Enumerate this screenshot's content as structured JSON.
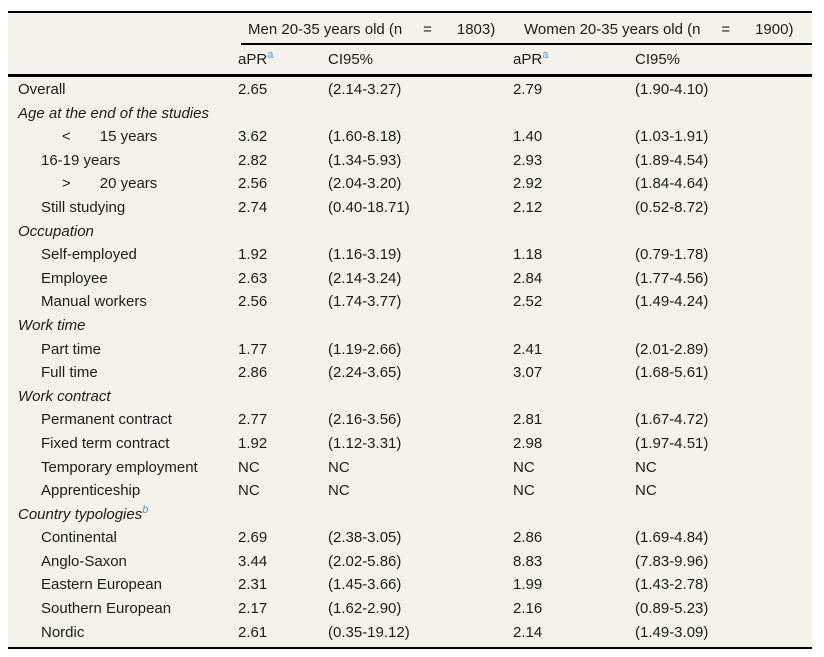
{
  "colors": {
    "table_background": "#f5f2e9",
    "rule_black": "#000000",
    "superscript_blue": "#4a9fd8",
    "text": "#1c1c1c"
  },
  "table": {
    "group_headers": [
      {
        "label": "Men 20-35 years old (n     =      1803)"
      },
      {
        "label": "Women 20-35 years old (n     =      1900)"
      }
    ],
    "sub_headers": {
      "apr_label": "aPR",
      "apr_sup": "a",
      "ci_label": "CI95%"
    },
    "rows": [
      {
        "style": "row",
        "label": "Overall",
        "men_apr": "2.65",
        "men_ci": "(2.14-3.27)",
        "women_apr": "2.79",
        "women_ci": "(1.90-4.10)"
      },
      {
        "style": "section",
        "label": "Age at the end of the studies",
        "men_apr": "",
        "men_ci": "",
        "women_apr": "",
        "women_ci": ""
      },
      {
        "style": "item",
        "label": "     <       15 years",
        "men_apr": "3.62",
        "men_ci": "(1.60-8.18)",
        "women_apr": "1.40",
        "women_ci": "(1.03-1.91)"
      },
      {
        "style": "item",
        "label": "16-19 years",
        "men_apr": "2.82",
        "men_ci": "(1.34-5.93)",
        "women_apr": "2.93",
        "women_ci": "(1.89-4.54)"
      },
      {
        "style": "item",
        "label": "     >       20 years",
        "men_apr": "2.56",
        "men_ci": "(2.04-3.20)",
        "women_apr": "2.92",
        "women_ci": "(1.84-4.64)"
      },
      {
        "style": "item",
        "label": "Still studying",
        "men_apr": "2.74",
        "men_ci": "(0.40-18.71)",
        "women_apr": "2.12",
        "women_ci": "(0.52-8.72)"
      },
      {
        "style": "section",
        "label": "Occupation",
        "men_apr": "",
        "men_ci": "",
        "women_apr": "",
        "women_ci": ""
      },
      {
        "style": "item",
        "label": "Self-employed",
        "men_apr": "1.92",
        "men_ci": "(1.16-3.19)",
        "women_apr": "1.18",
        "women_ci": "(0.79-1.78)"
      },
      {
        "style": "item",
        "label": "Employee",
        "men_apr": "2.63",
        "men_ci": "(2.14-3.24)",
        "women_apr": "2.84",
        "women_ci": "(1.77-4.56)"
      },
      {
        "style": "item",
        "label": "Manual workers",
        "men_apr": "2.56",
        "men_ci": "(1.74-3.77)",
        "women_apr": "2.52",
        "women_ci": "(1.49-4.24)"
      },
      {
        "style": "section",
        "label": "Work time",
        "men_apr": "",
        "men_ci": "",
        "women_apr": "",
        "women_ci": ""
      },
      {
        "style": "item",
        "label": "Part time",
        "men_apr": "1.77",
        "men_ci": "(1.19-2.66)",
        "women_apr": "2.41",
        "women_ci": "(2.01-2.89)"
      },
      {
        "style": "item",
        "label": "Full time",
        "men_apr": "2.86",
        "men_ci": "(2.24-3.65)",
        "women_apr": "3.07",
        "women_ci": "(1.68-5.61)"
      },
      {
        "style": "section",
        "label": "Work contract",
        "men_apr": "",
        "men_ci": "",
        "women_apr": "",
        "women_ci": ""
      },
      {
        "style": "item",
        "label": "Permanent contract",
        "men_apr": "2.77",
        "men_ci": "(2.16-3.56)",
        "women_apr": "2.81",
        "women_ci": "(1.67-4.72)"
      },
      {
        "style": "item",
        "label": "Fixed term contract",
        "men_apr": "1.92",
        "men_ci": "(1.12-3.31)",
        "women_apr": "2.98",
        "women_ci": "(1.97-4.51)"
      },
      {
        "style": "item",
        "label": "Temporary employment",
        "men_apr": "NC",
        "men_ci": "NC",
        "women_apr": "NC",
        "women_ci": "NC"
      },
      {
        "style": "item",
        "label": "Apprenticeship",
        "men_apr": "NC",
        "men_ci": "NC",
        "women_apr": "NC",
        "women_ci": "NC"
      },
      {
        "style": "section",
        "label": "Country typologies",
        "sup": "b",
        "men_apr": "",
        "men_ci": "",
        "women_apr": "",
        "women_ci": ""
      },
      {
        "style": "item",
        "label": "Continental",
        "men_apr": "2.69",
        "men_ci": "(2.38-3.05)",
        "women_apr": "2.86",
        "women_ci": "(1.69-4.84)"
      },
      {
        "style": "item",
        "label": "Anglo-Saxon",
        "men_apr": "3.44",
        "men_ci": "(2.02-5.86)",
        "women_apr": "8.83",
        "women_ci": "(7.83-9.96)"
      },
      {
        "style": "item",
        "label": "Eastern European",
        "men_apr": "2.31",
        "men_ci": "(1.45-3.66)",
        "women_apr": "1.99",
        "women_ci": "(1.43-2.78)"
      },
      {
        "style": "item",
        "label": "Southern European",
        "men_apr": "2.17",
        "men_ci": "(1.62-2.90)",
        "women_apr": "2.16",
        "women_ci": "(0.89-5.23)"
      },
      {
        "style": "item",
        "label": "Nordic",
        "men_apr": "2.61",
        "men_ci": "(0.35-19.12)",
        "women_apr": "2.14",
        "women_ci": "(1.49-3.09)"
      }
    ]
  }
}
